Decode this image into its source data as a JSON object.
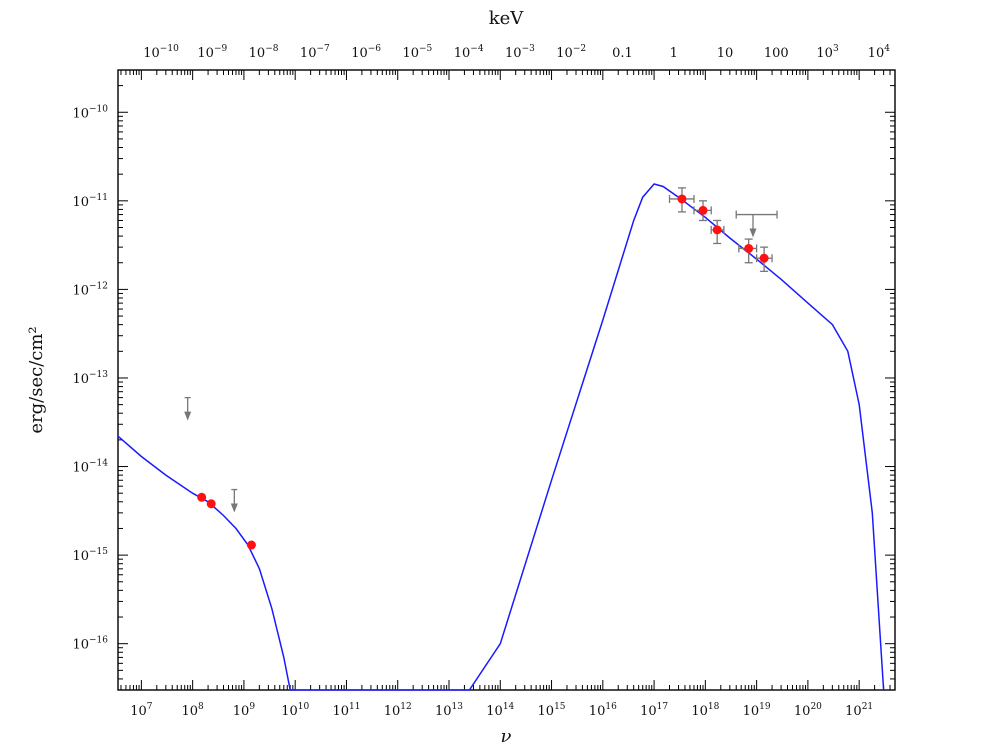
{
  "chart_data": {
    "type": "scatter",
    "xlabel": "ν",
    "ylabel": "erg/sec/cm²",
    "top_xlabel": "keV",
    "x_scale": "log",
    "y_scale": "log",
    "xlim": [
      3500000.0,
      5e+21
    ],
    "ylim": [
      3e-17,
      3e-10
    ],
    "grid": false,
    "legend": "none",
    "x_ticks": [
      {
        "exp": 7,
        "mant": "10",
        "sup": "7"
      },
      {
        "exp": 8,
        "mant": "10",
        "sup": "8"
      },
      {
        "exp": 9,
        "mant": "10",
        "sup": "9"
      },
      {
        "exp": 10,
        "mant": "10",
        "sup": "10"
      },
      {
        "exp": 11,
        "mant": "10",
        "sup": "11"
      },
      {
        "exp": 12,
        "mant": "10",
        "sup": "12"
      },
      {
        "exp": 13,
        "mant": "10",
        "sup": "13"
      },
      {
        "exp": 14,
        "mant": "10",
        "sup": "14"
      },
      {
        "exp": 15,
        "mant": "10",
        "sup": "15"
      },
      {
        "exp": 16,
        "mant": "10",
        "sup": "16"
      },
      {
        "exp": 17,
        "mant": "10",
        "sup": "17"
      },
      {
        "exp": 18,
        "mant": "10",
        "sup": "18"
      },
      {
        "exp": 19,
        "mant": "10",
        "sup": "19"
      },
      {
        "exp": 20,
        "mant": "10",
        "sup": "20"
      },
      {
        "exp": 21,
        "mant": "10",
        "sup": "21"
      }
    ],
    "y_ticks": [
      {
        "exp": -10,
        "mant": "10",
        "sup": "−10"
      },
      {
        "exp": -11,
        "mant": "10",
        "sup": "−11"
      },
      {
        "exp": -12,
        "mant": "10",
        "sup": "−12"
      },
      {
        "exp": -13,
        "mant": "10",
        "sup": "−13"
      },
      {
        "exp": -14,
        "mant": "10",
        "sup": "−14"
      },
      {
        "exp": -15,
        "mant": "10",
        "sup": "−15"
      },
      {
        "exp": -16,
        "mant": "10",
        "sup": "−16"
      }
    ],
    "top_ticks": [
      {
        "kev_exp": -10,
        "mant": "10",
        "sup": "−10"
      },
      {
        "kev_exp": -9,
        "mant": "10",
        "sup": "−9"
      },
      {
        "kev_exp": -8,
        "mant": "10",
        "sup": "−8"
      },
      {
        "kev_exp": -7,
        "mant": "10",
        "sup": "−7"
      },
      {
        "kev_exp": -6,
        "mant": "10",
        "sup": "−6"
      },
      {
        "kev_exp": -5,
        "mant": "10",
        "sup": "−5"
      },
      {
        "kev_exp": -4,
        "mant": "10",
        "sup": "−4"
      },
      {
        "kev_exp": -3,
        "mant": "10",
        "sup": "−3"
      },
      {
        "kev_exp": -2,
        "mant": "10",
        "sup": "−2"
      },
      {
        "kev_exp": -1,
        "mant": "0.1",
        "sup": ""
      },
      {
        "kev_exp": 0,
        "mant": "1",
        "sup": ""
      },
      {
        "kev_exp": 1,
        "mant": "10",
        "sup": ""
      },
      {
        "kev_exp": 2,
        "mant": "100",
        "sup": ""
      },
      {
        "kev_exp": 3,
        "mant": "10",
        "sup": "3"
      },
      {
        "kev_exp": 4,
        "mant": "10",
        "sup": "4"
      }
    ],
    "kev_hz": 2.418e+17,
    "model_curve": [
      [
        3500000.0,
        2.2e-14
      ],
      [
        10000000.0,
        1.3e-14
      ],
      [
        30000000.0,
        8e-15
      ],
      [
        100000000.0,
        5e-15
      ],
      [
        200000000.0,
        4e-15
      ],
      [
        400000000.0,
        2.8e-15
      ],
      [
        700000000.0,
        2e-15
      ],
      [
        1200000000.0,
        1.3e-15
      ],
      [
        2000000000.0,
        7e-16
      ],
      [
        3500000000.0,
        2.5e-16
      ],
      [
        6000000000.0,
        7e-17
      ],
      [
        8000000000.0,
        3e-17
      ],
      [
        25000000000000.0,
        3e-17
      ],
      [
        100000000000000.0,
        1e-16
      ],
      [
        1000000000000000.0,
        7e-15
      ],
      [
        1e+16,
        4.5e-13
      ],
      [
        4e+16,
        6e-12
      ],
      [
        6e+16,
        1.1e-11
      ],
      [
        1e+17,
        1.55e-11
      ],
      [
        1.5e+17,
        1.45e-11
      ],
      [
        3e+17,
        1.1e-11
      ],
      [
        1e+18,
        6.5e-12
      ],
      [
        3e+18,
        3.8e-12
      ],
      [
        1e+19,
        2.2e-12
      ],
      [
        3e+19,
        1.3e-12
      ],
      [
        1e+20,
        7e-13
      ],
      [
        3e+20,
        4e-13
      ],
      [
        6e+20,
        2e-13
      ],
      [
        1e+21,
        5e-14
      ],
      [
        1.8e+21,
        3e-15
      ],
      [
        3e+21,
        3e-17
      ]
    ],
    "curve_color": "#1a1aff",
    "points": [
      {
        "x": 150000000.0,
        "y": 4.5e-15
      },
      {
        "x": 230000000.0,
        "y": 3.8e-15
      },
      {
        "x": 1400000000.0,
        "y": 1.3e-15
      },
      {
        "x": 3.5e+17,
        "y": 1.05e-11,
        "xerr": [
          2e+17,
          6e+17
        ],
        "yerr": [
          7.5e-12,
          1.4e-11
        ]
      },
      {
        "x": 9e+17,
        "y": 7.8e-12,
        "xerr": [
          6e+17,
          1.3e+18
        ],
        "yerr": [
          6e-12,
          1e-11
        ]
      },
      {
        "x": 1.7e+18,
        "y": 4.7e-12,
        "xerr": [
          1.3e+18,
          2.3e+18
        ],
        "yerr": [
          3.3e-12,
          6e-12
        ]
      },
      {
        "x": 7e+18,
        "y": 2.9e-12,
        "xerr": [
          4.5e+18,
          1e+19
        ],
        "yerr": [
          2e-12,
          3.7e-12
        ]
      },
      {
        "x": 1.4e+19,
        "y": 2.25e-12,
        "xerr": [
          1e+19,
          2e+19
        ],
        "yerr": [
          1.6e-12,
          3e-12
        ]
      }
    ],
    "point_color": "#ff1111",
    "upper_limits": [
      {
        "x": 80000000.0,
        "y": 6e-14
      },
      {
        "x": 650000000.0,
        "y": 5.5e-15
      },
      {
        "x": 8.5e+18,
        "y": 7e-12,
        "xerr": [
          4e+18,
          2.5e+19
        ]
      }
    ],
    "error_color": "#777777"
  }
}
